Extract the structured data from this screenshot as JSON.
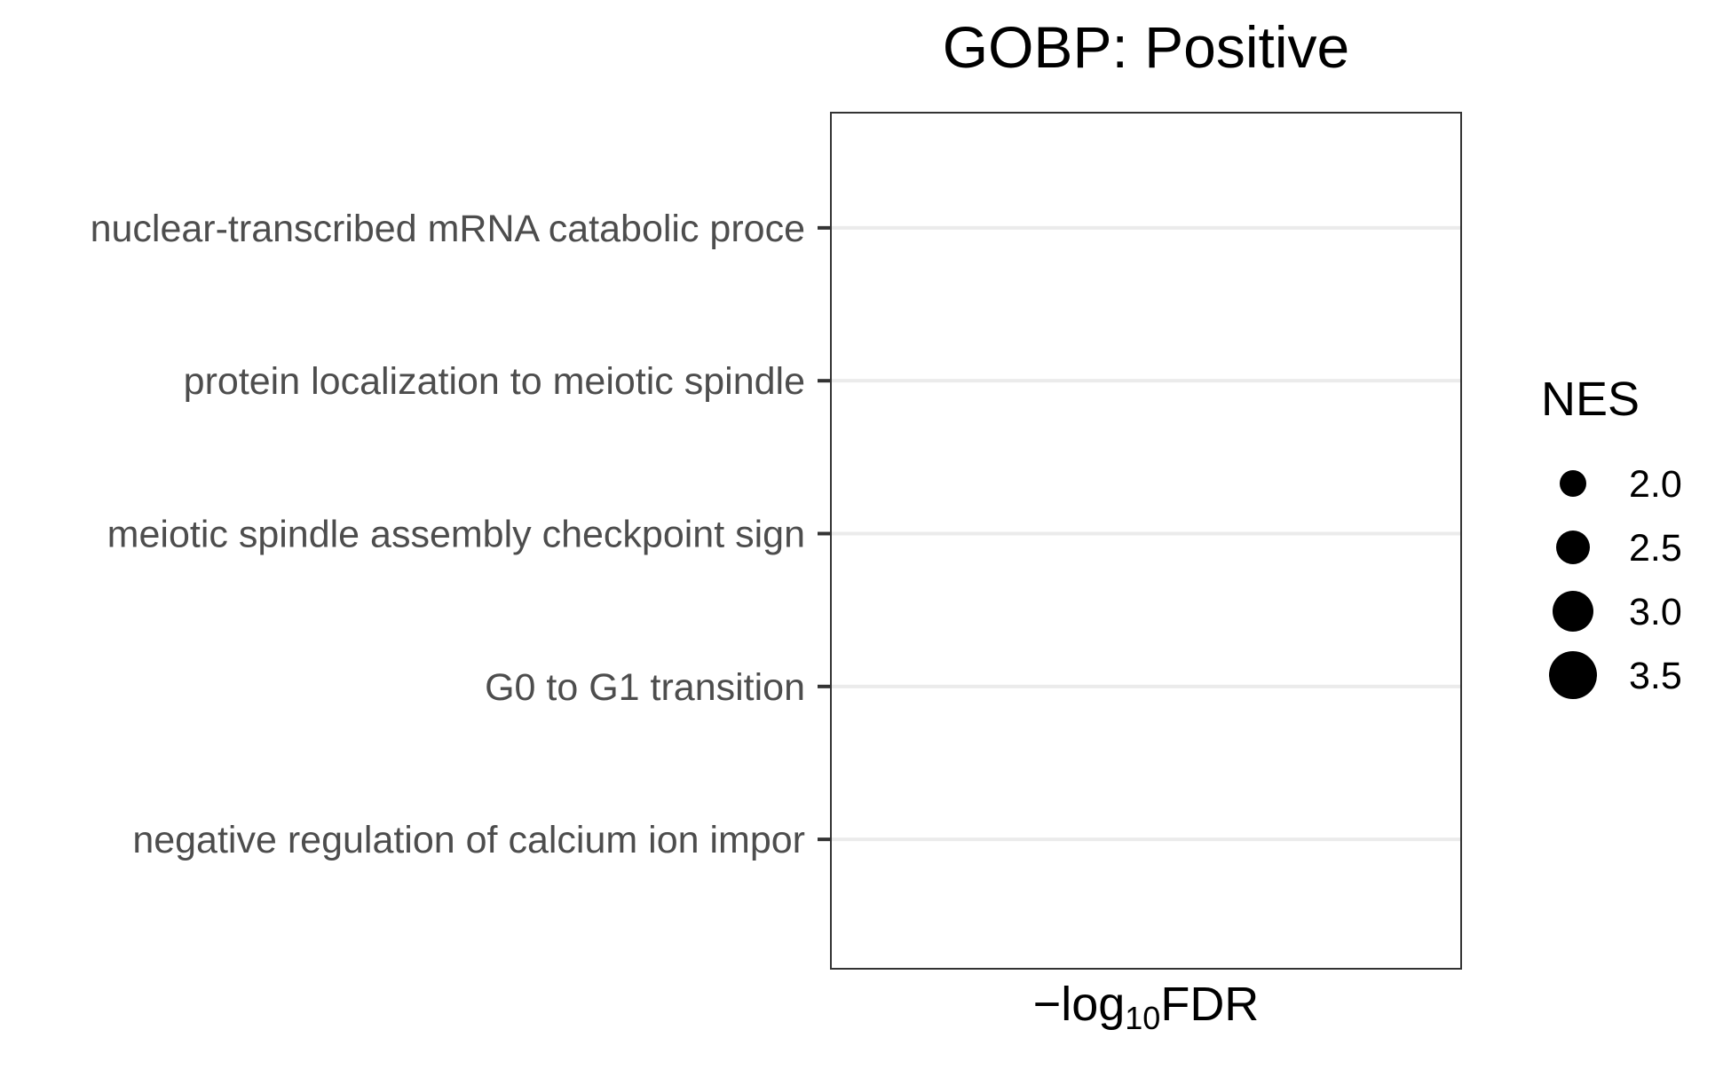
{
  "chart_data": {
    "type": "scatter",
    "title": "GOBP: Positive",
    "xlabel": {
      "prefix": "−log",
      "subscript": "10",
      "suffix": "FDR"
    },
    "ylabel": "",
    "categories": [
      "nuclear-transcribed mRNA catabolic proce",
      "protein localization to meiotic spindle",
      "meiotic spindle assembly checkpoint sign",
      "G0 to G1 transition",
      "negative regulation of calcium ion impor"
    ],
    "points": [],
    "size_legend": {
      "title": "NES",
      "values": [
        2.0,
        2.5,
        3.0,
        3.5
      ],
      "labels": [
        "2.0",
        "2.5",
        "3.0",
        "3.5"
      ]
    },
    "grid": true,
    "legend_position": "right"
  },
  "colors": {
    "panel_border": "#333333",
    "gridline": "#ebebeb",
    "tick_label": "#4d4d4d",
    "tick_mark": "#333333",
    "text": "#000000",
    "legend_point": "#000000"
  }
}
